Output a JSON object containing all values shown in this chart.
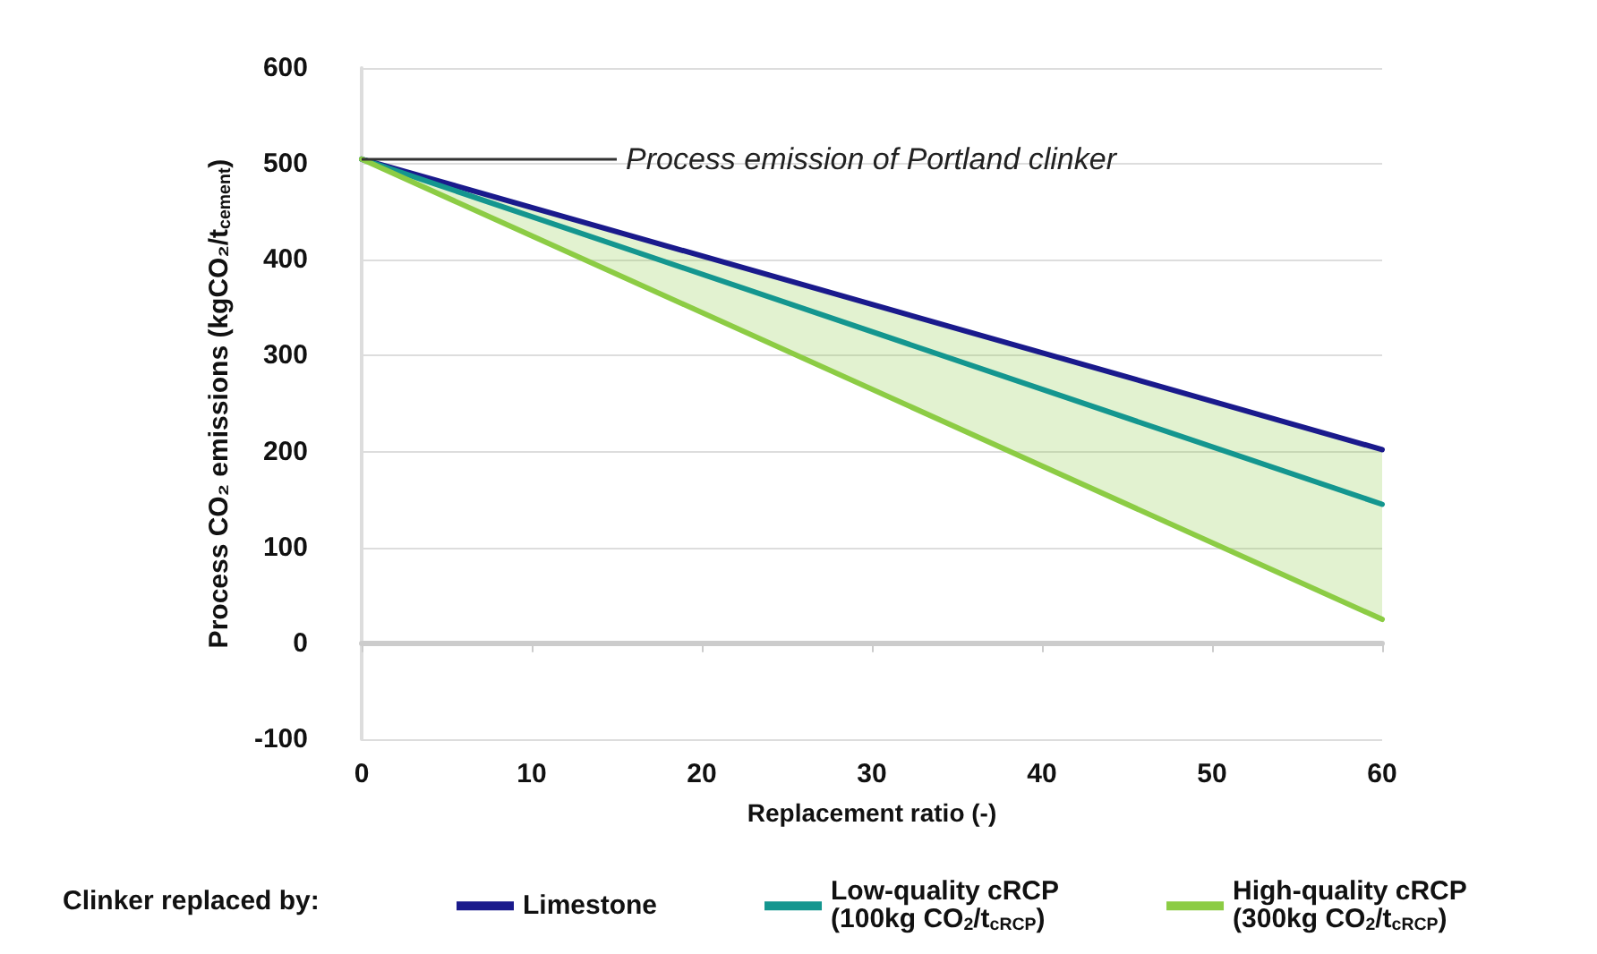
{
  "chart_data": {
    "type": "line",
    "xlabel": "Replacement ratio (-)",
    "ylabel": "Process CO₂ emissions (kgCO₂/t$_{cement}$)",
    "legend_title": "Clinker replaced by:",
    "x": [
      0,
      60
    ],
    "series": [
      {
        "name": "Limestone",
        "color": "#1a1a8c",
        "values": [
          505,
          202
        ]
      },
      {
        "name": "Low-quality cRCP\n(100kg CO$_{2}$/t$_{cRCP}$)",
        "color": "#14968f",
        "values": [
          505,
          145
        ],
        "lower": [
          505,
          25
        ],
        "upper": [
          505,
          202
        ]
      },
      {
        "name": "High-quality cRCP\n(300kg CO$_{2}$/t$_{cRCP}$)",
        "color": "#8ccc44",
        "values": [
          505,
          25
        ]
      }
    ],
    "annotations": [
      {
        "text": "Process emission of Portland clinker",
        "x": 0,
        "y": 505
      }
    ],
    "xlim": [
      0,
      60
    ],
    "xticks": [
      0,
      10,
      20,
      30,
      40,
      50,
      60
    ],
    "ylim": [
      -100,
      600
    ],
    "yticks": [
      -100,
      0,
      100,
      200,
      300,
      400,
      500,
      600
    ],
    "grid": "y",
    "legend": "bottom",
    "marker": "none",
    "line_style": "solid"
  }
}
